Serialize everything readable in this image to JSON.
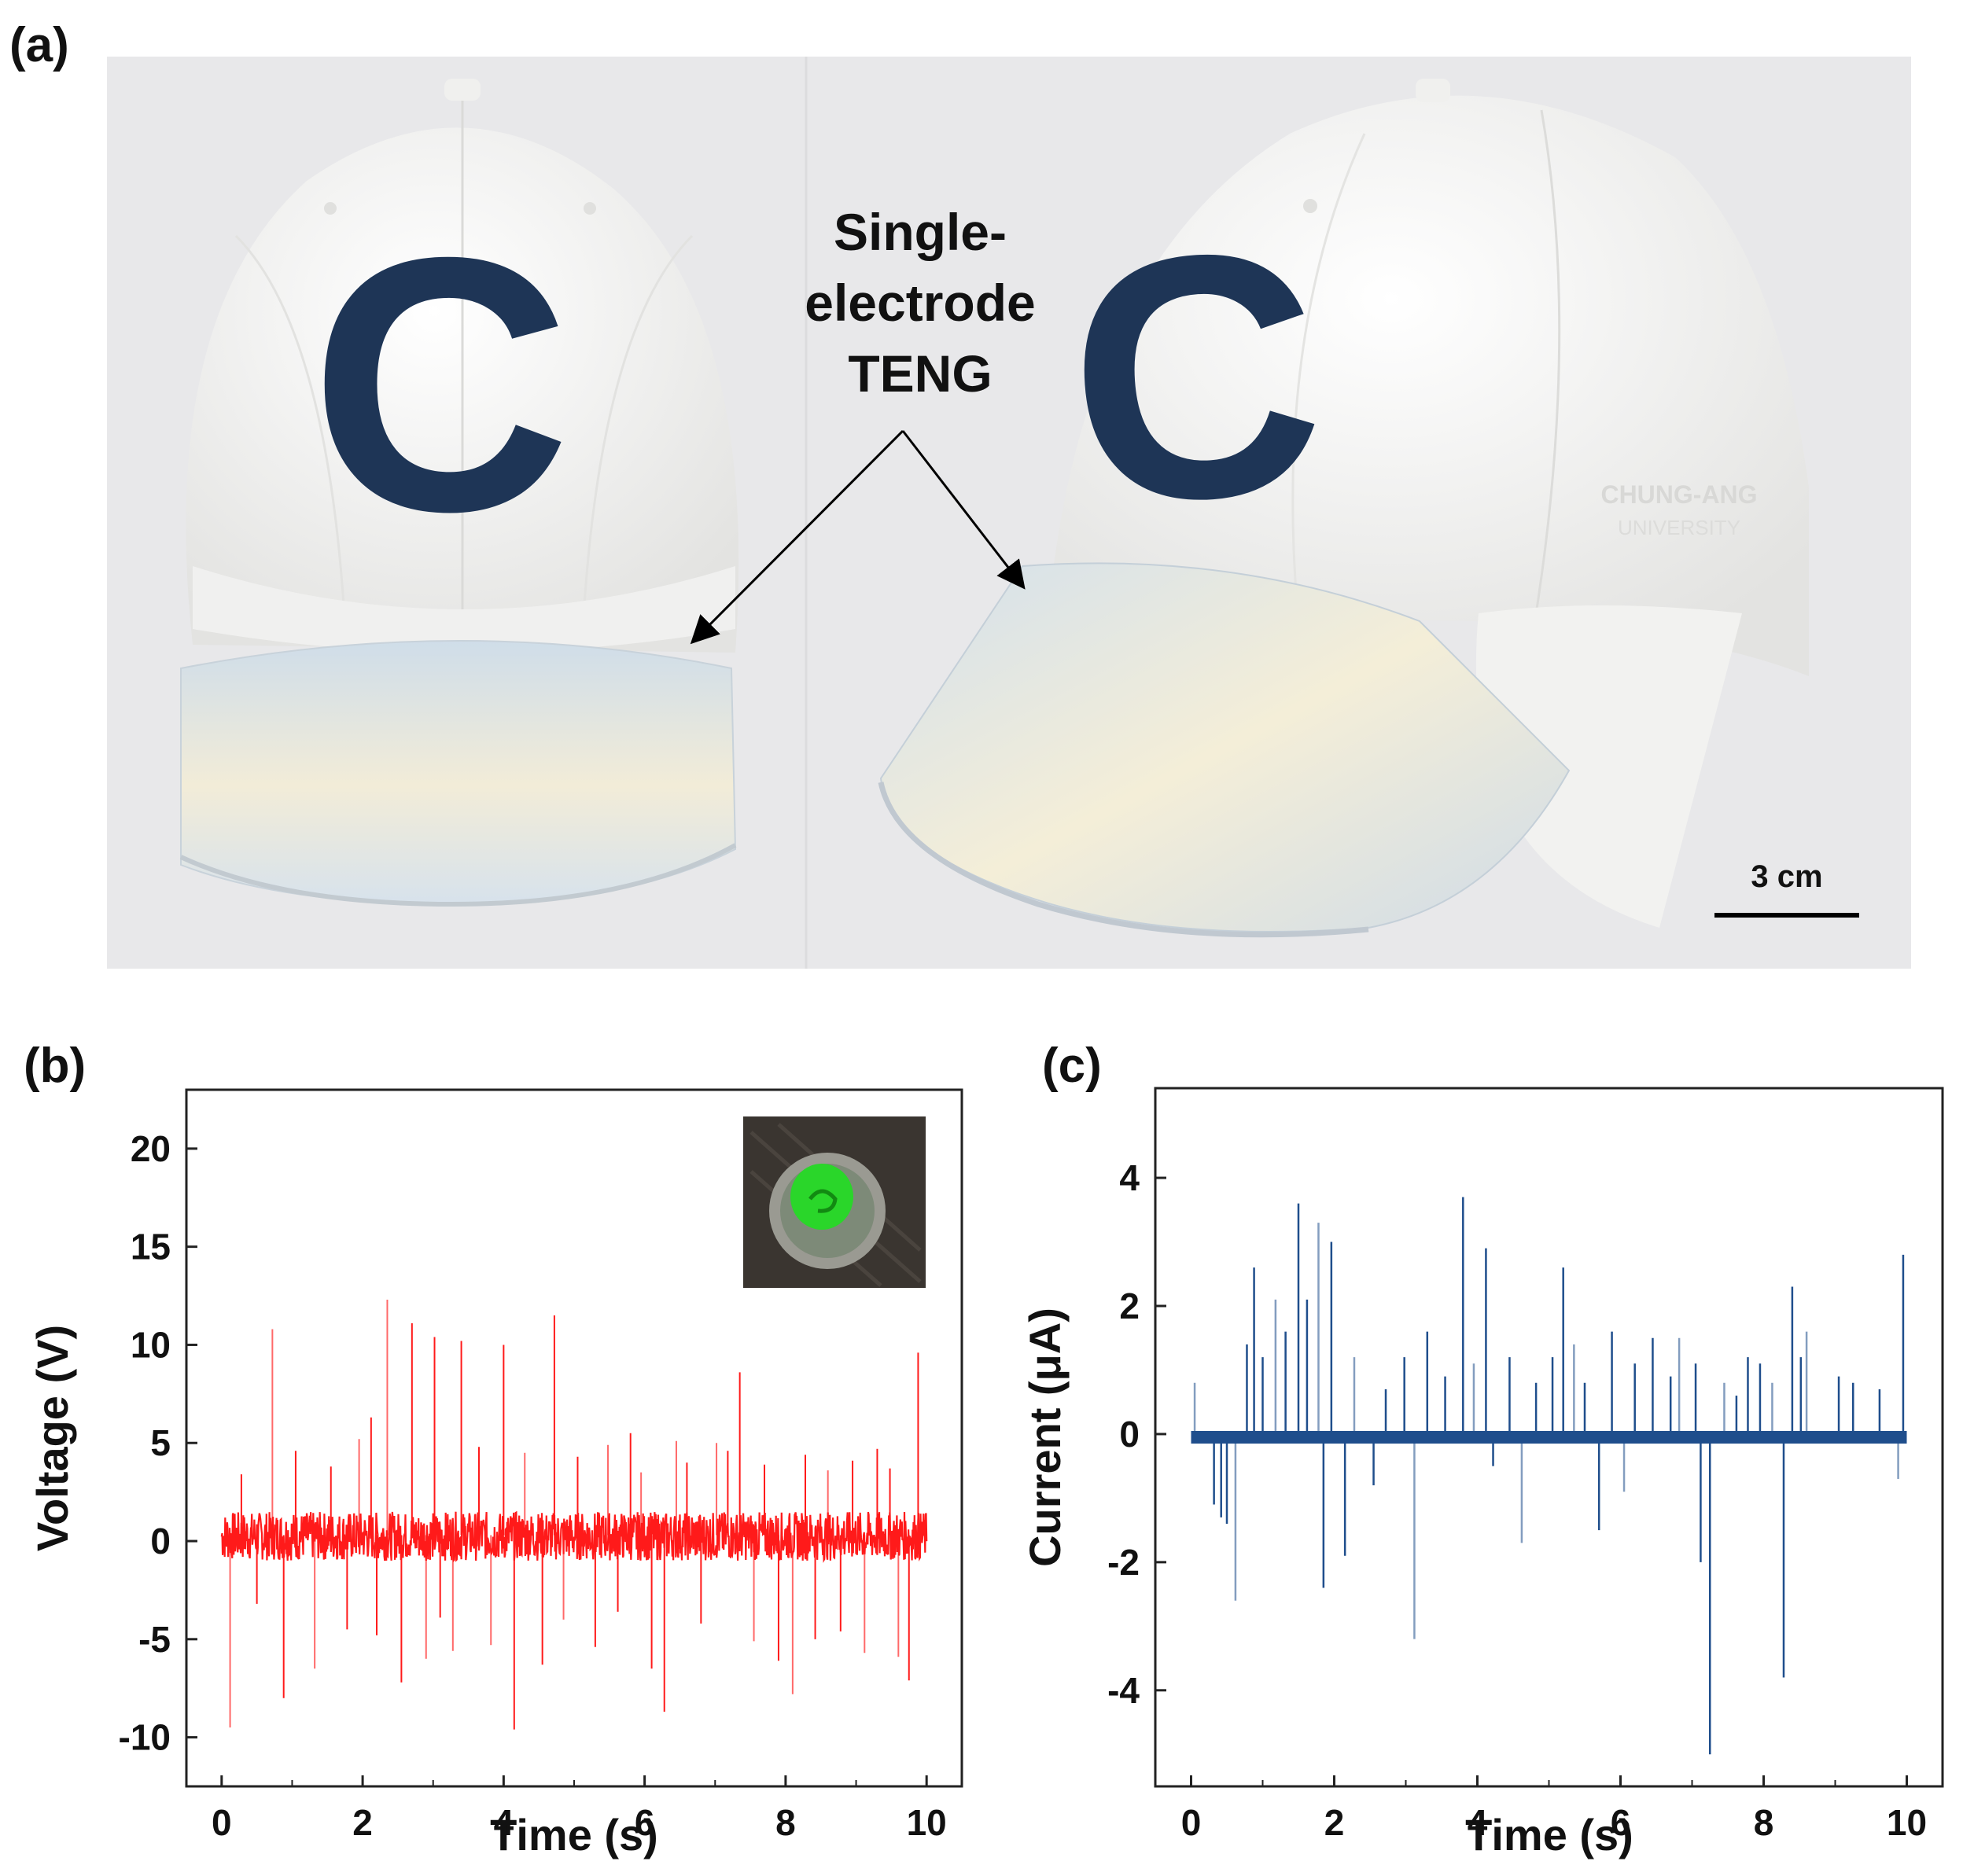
{
  "panels": {
    "a": "(a)",
    "b": "(b)",
    "c": "(c)"
  },
  "photo": {
    "annotation_line1": "Single-",
    "annotation_line2": "electrode",
    "annotation_line3": "TENG",
    "scale_bar_label": "3 cm",
    "hat_letter": "C",
    "colors": {
      "background": "#e9e9eb",
      "hat": "#f5f5f4",
      "letter": "#1e3556",
      "brim": "#d6e1ea",
      "arrow": "#000000"
    }
  },
  "chart_data": [
    {
      "type": "line",
      "title": "",
      "xlabel": "Time (s)",
      "ylabel": "Voltage (V)",
      "xlim": [
        -0.5,
        10.5
      ],
      "ylim": [
        -12.5,
        23
      ],
      "xticks": [
        0,
        2,
        4,
        6,
        8,
        10
      ],
      "xtick_labels": [
        "0",
        "2",
        "4",
        "6",
        "8",
        "10"
      ],
      "yticks": [
        -10,
        -5,
        0,
        5,
        10,
        15,
        20
      ],
      "ytick_labels": [
        "-10",
        "-5",
        "0",
        "5",
        "10",
        "15",
        "20"
      ],
      "color": "#ff1a1a",
      "baseline": 0.3,
      "noise_band": [
        -1.0,
        1.5
      ],
      "spikes": {
        "x": [
          0.12,
          0.28,
          0.5,
          0.72,
          0.88,
          1.05,
          1.32,
          1.55,
          1.78,
          1.95,
          2.12,
          2.2,
          2.35,
          2.55,
          2.7,
          2.9,
          3.02,
          3.1,
          3.28,
          3.4,
          3.65,
          3.82,
          4.0,
          4.15,
          4.3,
          4.55,
          4.72,
          4.85,
          5.05,
          5.3,
          5.48,
          5.62,
          5.8,
          5.95,
          6.1,
          6.28,
          6.45,
          6.6,
          6.8,
          7.02,
          7.18,
          7.35,
          7.55,
          7.7,
          7.9,
          8.1,
          8.28,
          8.42,
          8.6,
          8.78,
          8.95,
          9.12,
          9.3,
          9.48,
          9.6,
          9.75,
          9.88
        ],
        "y": [
          -9.5,
          3.4,
          -3.2,
          10.8,
          -8.0,
          4.6,
          -6.5,
          3.8,
          -4.5,
          5.2,
          6.3,
          -4.8,
          12.3,
          -7.2,
          11.1,
          -6.0,
          10.4,
          -3.9,
          -5.6,
          10.2,
          4.8,
          -5.3,
          10.0,
          -9.6,
          4.5,
          -6.3,
          11.5,
          -4.0,
          4.3,
          -5.4,
          4.9,
          -3.6,
          5.5,
          3.5,
          -6.5,
          -8.7,
          5.1,
          4.0,
          -4.2,
          5.0,
          4.6,
          8.6,
          -5.1,
          3.9,
          -6.1,
          -7.8,
          4.4,
          -5.0,
          3.6,
          -4.6,
          4.1,
          -5.7,
          4.7,
          3.7,
          -5.9,
          -7.1,
          9.6
        ]
      },
      "inset": {
        "description": "glowing green LED photo",
        "colors": {
          "glow": "#2ad62a",
          "ring": "#9a9a92",
          "background": "#3a3530"
        }
      }
    },
    {
      "type": "line",
      "title": "",
      "xlabel": "Time (s)",
      "ylabel": "Current (μA)",
      "xlim": [
        -0.5,
        10.5
      ],
      "ylim": [
        -5.5,
        5.4
      ],
      "xticks": [
        0,
        2,
        4,
        6,
        8,
        10
      ],
      "xtick_labels": [
        "0",
        "2",
        "4",
        "6",
        "8",
        "10"
      ],
      "yticks": [
        -4,
        -2,
        0,
        2,
        4
      ],
      "ytick_labels": [
        "-4",
        "-2",
        "0",
        "2",
        "4"
      ],
      "color": "#1f4e8c",
      "baseline": -0.05,
      "spikes": {
        "x": [
          0.05,
          0.32,
          0.42,
          0.5,
          0.62,
          0.78,
          0.88,
          1.0,
          1.18,
          1.32,
          1.5,
          1.62,
          1.78,
          1.85,
          1.96,
          2.15,
          2.28,
          2.55,
          2.72,
          2.98,
          3.12,
          3.3,
          3.55,
          3.8,
          3.95,
          4.12,
          4.22,
          4.45,
          4.62,
          4.82,
          5.05,
          5.2,
          5.35,
          5.5,
          5.7,
          5.88,
          6.05,
          6.2,
          6.45,
          6.7,
          6.82,
          7.05,
          7.12,
          7.25,
          7.45,
          7.62,
          7.78,
          7.95,
          8.12,
          8.28,
          8.4,
          8.52,
          8.6,
          9.05,
          9.25,
          9.62,
          9.88,
          9.95
        ],
        "y": [
          0.8,
          -1.1,
          -1.3,
          -1.4,
          -2.6,
          1.4,
          2.6,
          1.2,
          2.1,
          1.6,
          3.6,
          2.1,
          3.3,
          -2.4,
          3.0,
          -1.9,
          1.2,
          -0.8,
          0.7,
          1.2,
          -3.2,
          1.6,
          0.9,
          3.7,
          1.1,
          2.9,
          -0.5,
          1.2,
          -1.7,
          0.8,
          1.2,
          2.6,
          1.4,
          0.8,
          -1.5,
          1.6,
          -0.9,
          1.1,
          1.5,
          0.9,
          1.5,
          1.1,
          -2.0,
          -5.0,
          0.8,
          0.6,
          1.2,
          1.1,
          0.8,
          -3.8,
          2.3,
          1.2,
          1.6,
          0.9,
          0.8,
          0.7,
          -0.7,
          2.8
        ]
      }
    }
  ]
}
